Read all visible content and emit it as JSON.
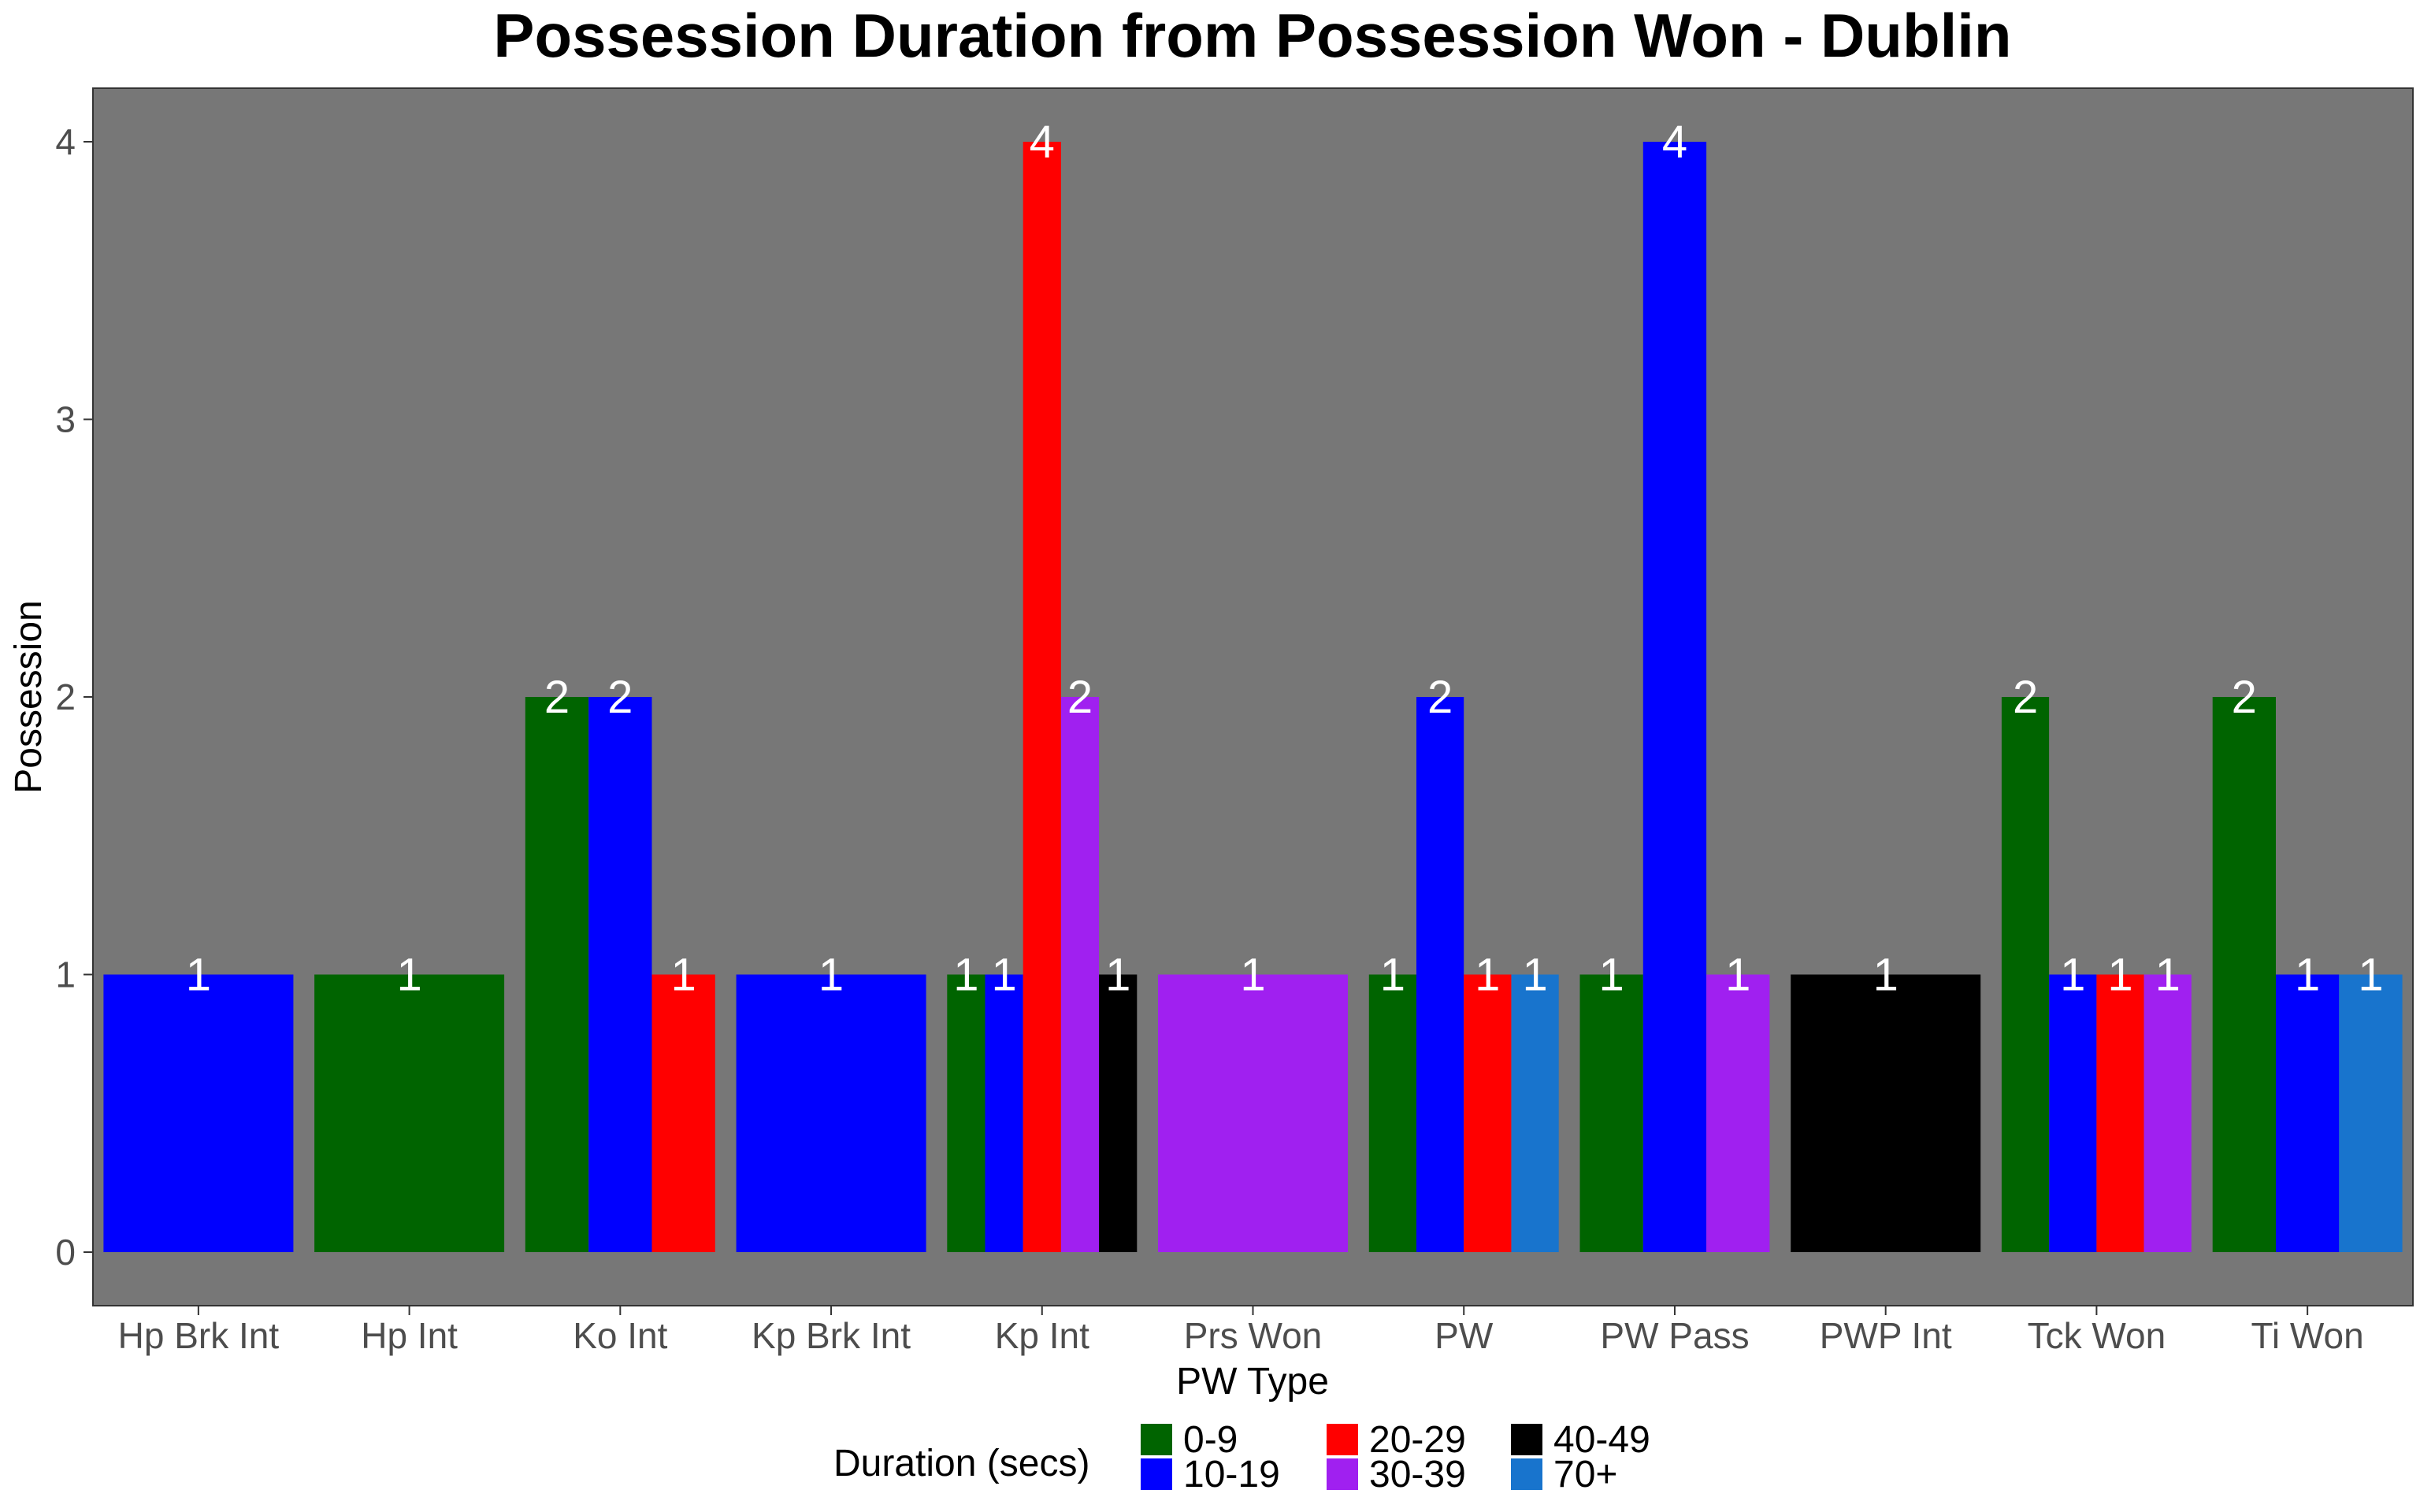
{
  "chart_data": {
    "type": "bar",
    "title": "Possession Duration from Possession Won - Dublin",
    "xlabel": "PW Type",
    "ylabel": "Possession",
    "ylim": [
      0,
      4
    ],
    "yticks": [
      "0",
      "1",
      "2",
      "3",
      "4"
    ],
    "grid": false,
    "legend": {
      "title": "Duration (secs)",
      "position": "bottom",
      "items": [
        {
          "name": "0-9",
          "color": "#006400"
        },
        {
          "name": "10-19",
          "color": "#0000ff"
        },
        {
          "name": "20-29",
          "color": "#ff0000"
        },
        {
          "name": "30-39",
          "color": "#a020f0"
        },
        {
          "name": "40-49",
          "color": "#000000"
        },
        {
          "name": "70+",
          "color": "#1874cd"
        }
      ]
    },
    "colors": {
      "panel": "#777777",
      "label": "#ffffff"
    },
    "categories": [
      "Hp Brk Int",
      "Hp Int",
      "Ko Int",
      "Kp Brk Int",
      "Kp Int",
      "Prs Won",
      "PW",
      "PW Pass",
      "PWP Int",
      "Tck Won",
      "Ti Won"
    ],
    "bars": [
      [
        {
          "series": "10-19",
          "value": 1
        }
      ],
      [
        {
          "series": "0-9",
          "value": 1
        }
      ],
      [
        {
          "series": "0-9",
          "value": 2
        },
        {
          "series": "10-19",
          "value": 2
        },
        {
          "series": "20-29",
          "value": 1
        }
      ],
      [
        {
          "series": "10-19",
          "value": 1
        }
      ],
      [
        {
          "series": "0-9",
          "value": 1
        },
        {
          "series": "10-19",
          "value": 1
        },
        {
          "series": "20-29",
          "value": 4
        },
        {
          "series": "30-39",
          "value": 2
        },
        {
          "series": "40-49",
          "value": 1
        }
      ],
      [
        {
          "series": "30-39",
          "value": 1
        }
      ],
      [
        {
          "series": "0-9",
          "value": 1
        },
        {
          "series": "10-19",
          "value": 2
        },
        {
          "series": "20-29",
          "value": 1
        },
        {
          "series": "70+",
          "value": 1
        }
      ],
      [
        {
          "series": "0-9",
          "value": 1
        },
        {
          "series": "10-19",
          "value": 4
        },
        {
          "series": "30-39",
          "value": 1
        }
      ],
      [
        {
          "series": "40-49",
          "value": 1
        }
      ],
      [
        {
          "series": "0-9",
          "value": 2
        },
        {
          "series": "10-19",
          "value": 1
        },
        {
          "series": "20-29",
          "value": 1
        },
        {
          "series": "30-39",
          "value": 1
        }
      ],
      [
        {
          "series": "0-9",
          "value": 2
        },
        {
          "series": "10-19",
          "value": 1
        },
        {
          "series": "70+",
          "value": 1
        }
      ]
    ]
  }
}
